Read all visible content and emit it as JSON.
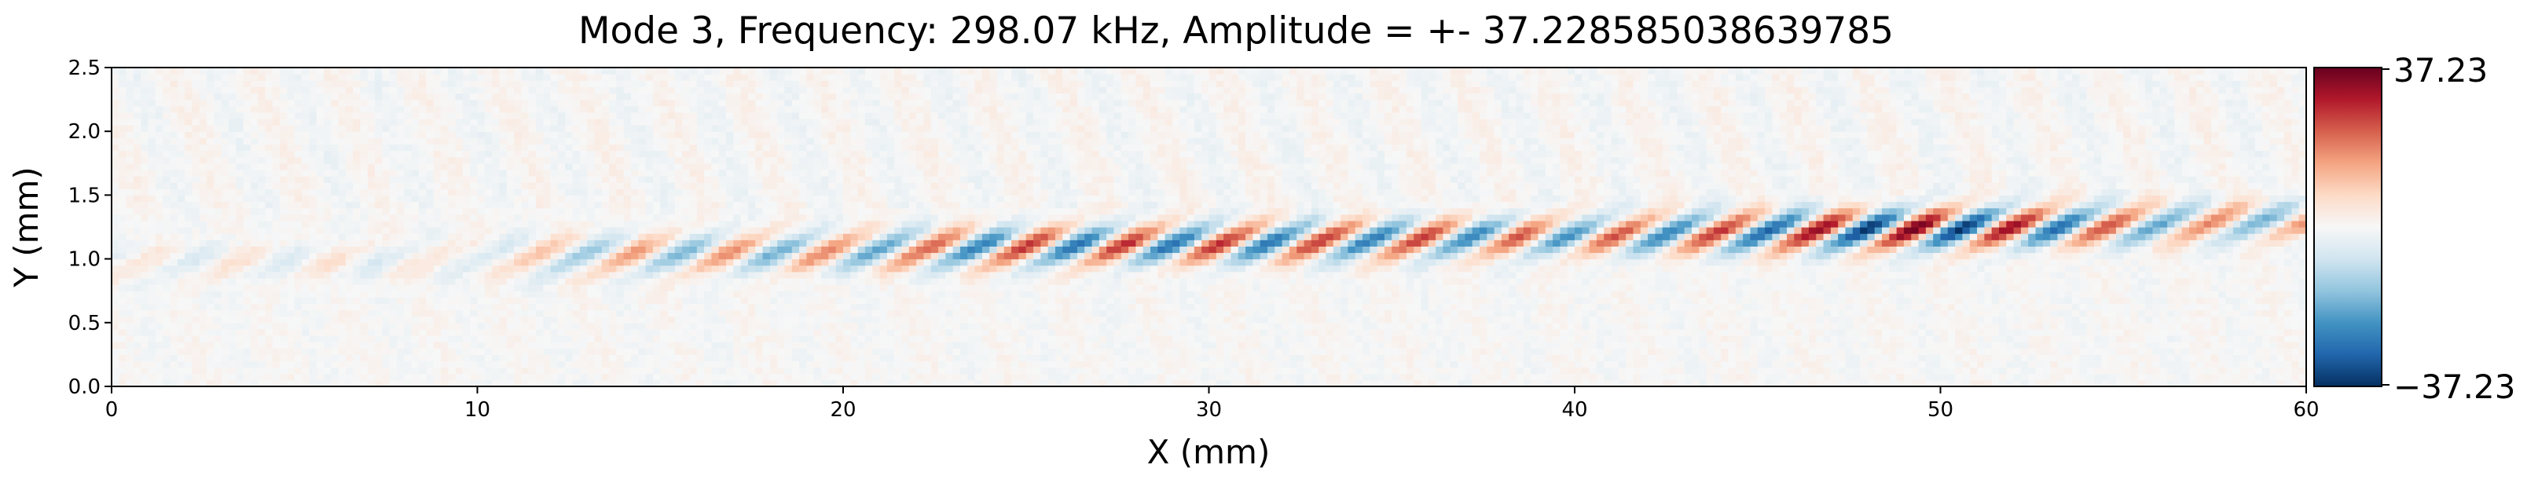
{
  "chart_data": {
    "type": "heatmap",
    "title": "Mode 3, Frequency: 298.07 kHz, Amplitude = +- 37.228585038639785",
    "xlabel": "X (mm)",
    "ylabel": "Y (mm)",
    "xlim": [
      0,
      60
    ],
    "ylim": [
      0,
      2.5
    ],
    "x_ticks": [
      "0",
      "10",
      "20",
      "30",
      "40",
      "50",
      "60"
    ],
    "y_ticks": [
      "0.0",
      "0.5",
      "1.0",
      "1.5",
      "2.0",
      "2.5"
    ],
    "colormap": "RdBu_r",
    "colorbar": {
      "min": -37.23,
      "max": 37.23,
      "max_label": "37.23",
      "min_label": "−37.23"
    },
    "wave_band": {
      "center_y_start": 0.95,
      "center_y_end": 1.3,
      "half_width_y": 0.16,
      "wavelength_mm": 2.7,
      "amplitude_envelope": [
        [
          0,
          0.12
        ],
        [
          5,
          0.15
        ],
        [
          10,
          0.12
        ],
        [
          12,
          0.35
        ],
        [
          15,
          0.45
        ],
        [
          20,
          0.5
        ],
        [
          24,
          0.72
        ],
        [
          30,
          0.75
        ],
        [
          35,
          0.72
        ],
        [
          40,
          0.58
        ],
        [
          44,
          0.75
        ],
        [
          47,
          0.95
        ],
        [
          50,
          1.0
        ],
        [
          53,
          0.8
        ],
        [
          56,
          0.55
        ],
        [
          60,
          0.45
        ]
      ]
    },
    "colors": {
      "positive_max": "#67001f",
      "negative_max": "#053061",
      "zero": "#f7f7f7"
    }
  }
}
